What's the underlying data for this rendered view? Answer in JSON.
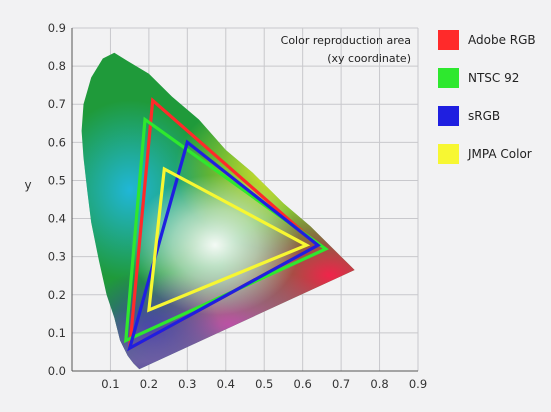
{
  "chart_data": {
    "type": "line",
    "annotation": [
      "Color reproduction area",
      "(xy coordinate)"
    ],
    "xlabel": "",
    "ylabel": "y",
    "xlim": [
      0,
      0.9
    ],
    "ylim": [
      0,
      0.9
    ],
    "x_ticks": [
      "0.1",
      "0.2",
      "0.3",
      "0.4",
      "0.5",
      "0.6",
      "0.7",
      "0.8",
      "0.9"
    ],
    "y_ticks": [
      "0.0",
      "0.1",
      "0.2",
      "0.3",
      "0.4",
      "0.5",
      "0.6",
      "0.7",
      "0.8",
      "0.9"
    ],
    "grid": true,
    "legend_position": "right",
    "spectral_locus": [
      [
        0.175,
        0.005
      ],
      [
        0.17,
        0.01
      ],
      [
        0.16,
        0.02
      ],
      [
        0.145,
        0.04
      ],
      [
        0.125,
        0.08
      ],
      [
        0.11,
        0.14
      ],
      [
        0.09,
        0.2
      ],
      [
        0.07,
        0.29
      ],
      [
        0.05,
        0.39
      ],
      [
        0.04,
        0.47
      ],
      [
        0.03,
        0.56
      ],
      [
        0.025,
        0.63
      ],
      [
        0.03,
        0.7
      ],
      [
        0.05,
        0.77
      ],
      [
        0.08,
        0.82
      ],
      [
        0.11,
        0.835
      ],
      [
        0.15,
        0.81
      ],
      [
        0.2,
        0.78
      ],
      [
        0.26,
        0.72
      ],
      [
        0.33,
        0.66
      ],
      [
        0.4,
        0.58
      ],
      [
        0.47,
        0.52
      ],
      [
        0.55,
        0.44
      ],
      [
        0.62,
        0.38
      ],
      [
        0.69,
        0.31
      ],
      [
        0.735,
        0.265
      ]
    ],
    "series": [
      {
        "name": "Adobe RGB",
        "color": "#ff2a2a",
        "points": [
          [
            0.21,
            0.71
          ],
          [
            0.64,
            0.33
          ],
          [
            0.15,
            0.06
          ]
        ]
      },
      {
        "name": "NTSC 92",
        "color": "#2ee82e",
        "points": [
          [
            0.19,
            0.66
          ],
          [
            0.66,
            0.32
          ],
          [
            0.14,
            0.08
          ]
        ]
      },
      {
        "name": "sRGB",
        "color": "#1f1fe0",
        "points": [
          [
            0.3,
            0.6
          ],
          [
            0.64,
            0.33
          ],
          [
            0.15,
            0.06
          ]
        ]
      },
      {
        "name": "JMPA Color",
        "color": "#f7f732",
        "points": [
          [
            0.24,
            0.53
          ],
          [
            0.61,
            0.33
          ],
          [
            0.2,
            0.16
          ]
        ]
      }
    ]
  }
}
